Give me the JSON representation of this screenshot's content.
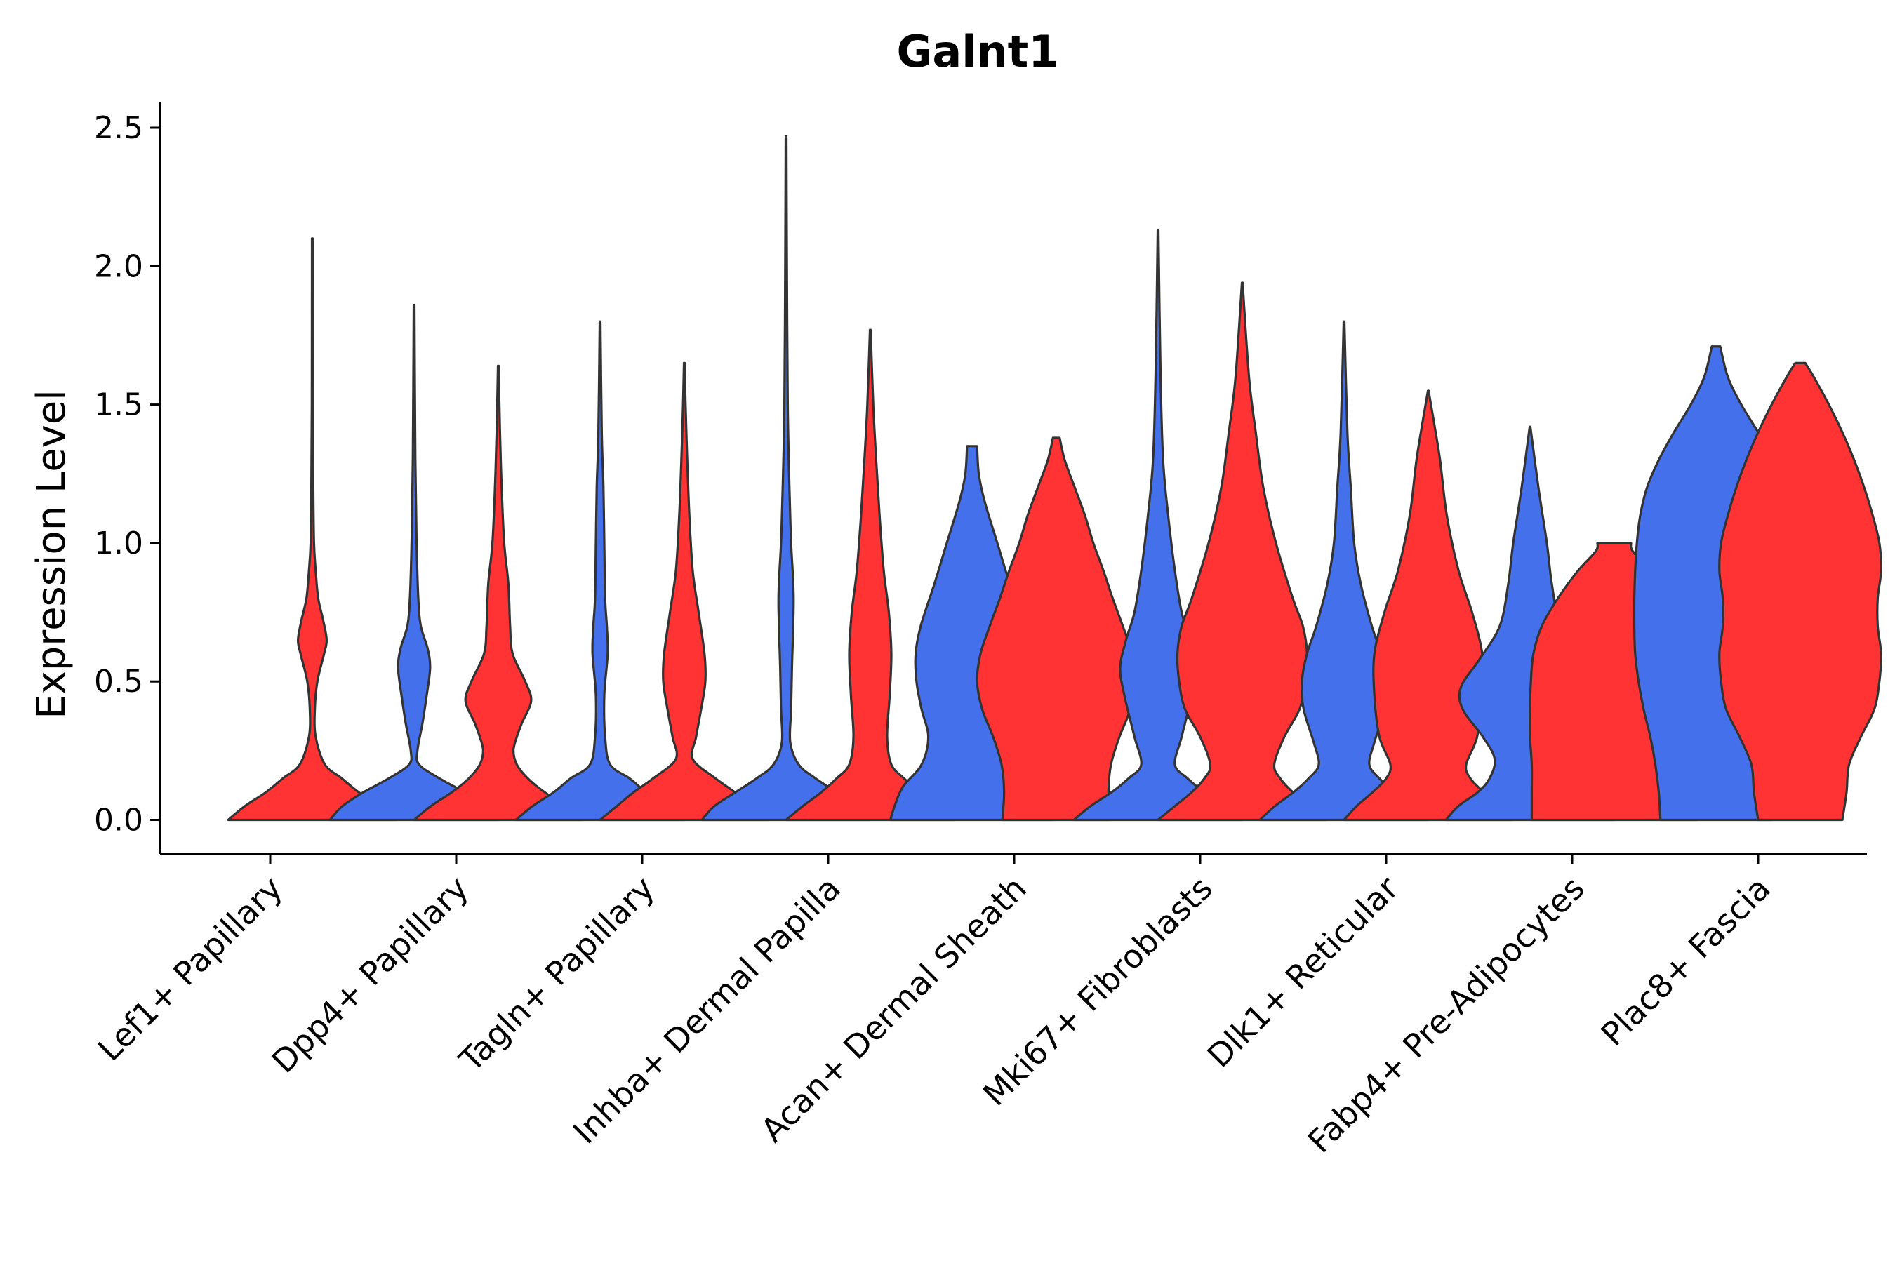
{
  "chart_data": {
    "type": "violin",
    "title": "Galnt1",
    "xlabel": "",
    "ylabel": "Expression Level",
    "ylim": [
      -0.12,
      2.6
    ],
    "yticks": [
      0.0,
      0.5,
      1.0,
      1.5,
      2.0,
      2.5
    ],
    "ytick_labels": [
      "0.0",
      "0.5",
      "1.0",
      "1.5",
      "2.0",
      "2.5"
    ],
    "grid": false,
    "legend": "none",
    "series_colors": [
      "#4470EB",
      "#FF3333"
    ],
    "categories": [
      "Lef1+ Papillary",
      "Dpp4+ Papillary",
      "Tagln+ Papillary",
      "Inhba+ Dermal Papilla",
      "Acan+ Dermal Sheath",
      "Mki67+ Fibroblasts",
      "Dlk1+ Reticular",
      "Fabp4+ Pre-Adipocytes",
      "Plac8+ Fascia"
    ],
    "violins": [
      {
        "category": 0,
        "group": 1,
        "max": 2.1,
        "profile": [
          [
            0,
            1.0
          ],
          [
            0.05,
            0.8
          ],
          [
            0.1,
            0.55
          ],
          [
            0.15,
            0.35
          ],
          [
            0.2,
            0.15
          ],
          [
            0.3,
            0.04
          ],
          [
            0.4,
            0.03
          ],
          [
            0.5,
            0.06
          ],
          [
            0.6,
            0.14
          ],
          [
            0.65,
            0.17
          ],
          [
            0.72,
            0.13
          ],
          [
            0.8,
            0.07
          ],
          [
            0.9,
            0.04
          ],
          [
            1.0,
            0.02
          ],
          [
            1.2,
            0.012
          ],
          [
            1.5,
            0.006
          ],
          [
            2.1,
            0.004
          ]
        ]
      },
      {
        "category": 1,
        "group": 0,
        "max": 1.86,
        "profile": [
          [
            0,
            1.0
          ],
          [
            0.05,
            0.85
          ],
          [
            0.1,
            0.6
          ],
          [
            0.15,
            0.3
          ],
          [
            0.2,
            0.06
          ],
          [
            0.25,
            0.04
          ],
          [
            0.35,
            0.1
          ],
          [
            0.45,
            0.15
          ],
          [
            0.55,
            0.19
          ],
          [
            0.62,
            0.16
          ],
          [
            0.7,
            0.08
          ],
          [
            0.8,
            0.05
          ],
          [
            1.0,
            0.03
          ],
          [
            1.3,
            0.015
          ],
          [
            1.86,
            0.004
          ]
        ]
      },
      {
        "category": 1,
        "group": 1,
        "max": 1.64,
        "profile": [
          [
            0,
            1.0
          ],
          [
            0.05,
            0.8
          ],
          [
            0.1,
            0.55
          ],
          [
            0.15,
            0.35
          ],
          [
            0.2,
            0.22
          ],
          [
            0.25,
            0.18
          ],
          [
            0.3,
            0.22
          ],
          [
            0.35,
            0.28
          ],
          [
            0.43,
            0.39
          ],
          [
            0.5,
            0.32
          ],
          [
            0.6,
            0.17
          ],
          [
            0.7,
            0.14
          ],
          [
            0.85,
            0.12
          ],
          [
            1.0,
            0.07
          ],
          [
            1.2,
            0.04
          ],
          [
            1.4,
            0.02
          ],
          [
            1.64,
            0.004
          ]
        ]
      },
      {
        "category": 2,
        "group": 0,
        "max": 1.8,
        "profile": [
          [
            0,
            1.0
          ],
          [
            0.05,
            0.8
          ],
          [
            0.1,
            0.55
          ],
          [
            0.15,
            0.35
          ],
          [
            0.2,
            0.12
          ],
          [
            0.3,
            0.06
          ],
          [
            0.45,
            0.05
          ],
          [
            0.6,
            0.09
          ],
          [
            0.7,
            0.08
          ],
          [
            0.8,
            0.06
          ],
          [
            1.0,
            0.05
          ],
          [
            1.2,
            0.04
          ],
          [
            1.4,
            0.02
          ],
          [
            1.8,
            0.004
          ]
        ]
      },
      {
        "category": 2,
        "group": 1,
        "max": 1.65,
        "profile": [
          [
            0,
            1.0
          ],
          [
            0.05,
            0.8
          ],
          [
            0.1,
            0.6
          ],
          [
            0.15,
            0.37
          ],
          [
            0.22,
            0.1
          ],
          [
            0.3,
            0.14
          ],
          [
            0.4,
            0.2
          ],
          [
            0.5,
            0.25
          ],
          [
            0.6,
            0.24
          ],
          [
            0.75,
            0.17
          ],
          [
            0.9,
            0.1
          ],
          [
            1.1,
            0.06
          ],
          [
            1.3,
            0.035
          ],
          [
            1.5,
            0.015
          ],
          [
            1.65,
            0.004
          ]
        ]
      },
      {
        "category": 3,
        "group": 0,
        "max": 2.47,
        "profile": [
          [
            0,
            1.0
          ],
          [
            0.05,
            0.85
          ],
          [
            0.1,
            0.6
          ],
          [
            0.15,
            0.35
          ],
          [
            0.2,
            0.15
          ],
          [
            0.28,
            0.05
          ],
          [
            0.4,
            0.06
          ],
          [
            0.55,
            0.07
          ],
          [
            0.8,
            0.09
          ],
          [
            1.0,
            0.06
          ],
          [
            1.2,
            0.04
          ],
          [
            1.5,
            0.02
          ],
          [
            2.0,
            0.01
          ],
          [
            2.47,
            0.004
          ]
        ]
      },
      {
        "category": 3,
        "group": 1,
        "max": 1.77,
        "profile": [
          [
            0,
            1.0
          ],
          [
            0.05,
            0.8
          ],
          [
            0.1,
            0.58
          ],
          [
            0.15,
            0.4
          ],
          [
            0.2,
            0.25
          ],
          [
            0.3,
            0.2
          ],
          [
            0.45,
            0.23
          ],
          [
            0.6,
            0.25
          ],
          [
            0.75,
            0.22
          ],
          [
            0.9,
            0.16
          ],
          [
            1.1,
            0.11
          ],
          [
            1.3,
            0.07
          ],
          [
            1.5,
            0.035
          ],
          [
            1.77,
            0.004
          ]
        ]
      },
      {
        "category": 4,
        "group": 0,
        "max": 1.35,
        "profile": [
          [
            0,
            0.97
          ],
          [
            0.05,
            0.92
          ],
          [
            0.12,
            0.82
          ],
          [
            0.2,
            0.6
          ],
          [
            0.3,
            0.52
          ],
          [
            0.4,
            0.6
          ],
          [
            0.5,
            0.66
          ],
          [
            0.6,
            0.67
          ],
          [
            0.7,
            0.61
          ],
          [
            0.85,
            0.45
          ],
          [
            1.0,
            0.3
          ],
          [
            1.15,
            0.15
          ],
          [
            1.25,
            0.08
          ],
          [
            1.35,
            0.06
          ]
        ]
      },
      {
        "category": 4,
        "group": 1,
        "max": 1.38,
        "profile": [
          [
            0,
            0.64
          ],
          [
            0.1,
            0.62
          ],
          [
            0.2,
            0.65
          ],
          [
            0.3,
            0.75
          ],
          [
            0.4,
            0.88
          ],
          [
            0.5,
            0.94
          ],
          [
            0.6,
            0.9
          ],
          [
            0.7,
            0.79
          ],
          [
            0.8,
            0.67
          ],
          [
            0.9,
            0.56
          ],
          [
            1.0,
            0.44
          ],
          [
            1.1,
            0.34
          ],
          [
            1.2,
            0.22
          ],
          [
            1.3,
            0.1
          ],
          [
            1.38,
            0.04
          ]
        ]
      },
      {
        "category": 5,
        "group": 0,
        "max": 2.13,
        "profile": [
          [
            0,
            1.0
          ],
          [
            0.05,
            0.8
          ],
          [
            0.1,
            0.55
          ],
          [
            0.15,
            0.35
          ],
          [
            0.2,
            0.2
          ],
          [
            0.3,
            0.28
          ],
          [
            0.45,
            0.4
          ],
          [
            0.55,
            0.45
          ],
          [
            0.65,
            0.38
          ],
          [
            0.75,
            0.28
          ],
          [
            0.9,
            0.2
          ],
          [
            1.1,
            0.12
          ],
          [
            1.3,
            0.06
          ],
          [
            1.6,
            0.03
          ],
          [
            2.13,
            0.004
          ]
        ]
      },
      {
        "category": 5,
        "group": 1,
        "max": 1.94,
        "profile": [
          [
            0,
            1.0
          ],
          [
            0.05,
            0.8
          ],
          [
            0.1,
            0.6
          ],
          [
            0.15,
            0.45
          ],
          [
            0.2,
            0.38
          ],
          [
            0.3,
            0.5
          ],
          [
            0.4,
            0.68
          ],
          [
            0.5,
            0.75
          ],
          [
            0.6,
            0.77
          ],
          [
            0.7,
            0.72
          ],
          [
            0.8,
            0.6
          ],
          [
            1.0,
            0.4
          ],
          [
            1.2,
            0.25
          ],
          [
            1.4,
            0.16
          ],
          [
            1.6,
            0.08
          ],
          [
            1.94,
            0.004
          ]
        ]
      },
      {
        "category": 6,
        "group": 0,
        "max": 1.8,
        "profile": [
          [
            0,
            1.0
          ],
          [
            0.05,
            0.82
          ],
          [
            0.1,
            0.6
          ],
          [
            0.15,
            0.42
          ],
          [
            0.2,
            0.3
          ],
          [
            0.28,
            0.36
          ],
          [
            0.4,
            0.48
          ],
          [
            0.5,
            0.5
          ],
          [
            0.6,
            0.44
          ],
          [
            0.7,
            0.33
          ],
          [
            0.85,
            0.2
          ],
          [
            1.0,
            0.12
          ],
          [
            1.2,
            0.08
          ],
          [
            1.4,
            0.04
          ],
          [
            1.8,
            0.004
          ]
        ]
      },
      {
        "category": 6,
        "group": 1,
        "max": 1.55,
        "profile": [
          [
            0,
            1.0
          ],
          [
            0.05,
            0.85
          ],
          [
            0.1,
            0.66
          ],
          [
            0.15,
            0.5
          ],
          [
            0.2,
            0.45
          ],
          [
            0.3,
            0.58
          ],
          [
            0.45,
            0.64
          ],
          [
            0.6,
            0.64
          ],
          [
            0.75,
            0.52
          ],
          [
            0.9,
            0.36
          ],
          [
            1.1,
            0.22
          ],
          [
            1.3,
            0.14
          ],
          [
            1.45,
            0.06
          ],
          [
            1.55,
            0.004
          ]
        ]
      },
      {
        "category": 7,
        "group": 0,
        "max": 1.42,
        "profile": [
          [
            0,
            1.0
          ],
          [
            0.05,
            0.85
          ],
          [
            0.1,
            0.62
          ],
          [
            0.15,
            0.48
          ],
          [
            0.22,
            0.42
          ],
          [
            0.3,
            0.56
          ],
          [
            0.4,
            0.8
          ],
          [
            0.48,
            0.82
          ],
          [
            0.58,
            0.6
          ],
          [
            0.7,
            0.36
          ],
          [
            0.85,
            0.26
          ],
          [
            1.0,
            0.2
          ],
          [
            1.2,
            0.1
          ],
          [
            1.42,
            0.004
          ]
        ]
      },
      {
        "category": 7,
        "group": 1,
        "max": 1.0,
        "profile": [
          [
            0,
            0.98
          ],
          [
            0.1,
            0.98
          ],
          [
            0.2,
            0.98
          ],
          [
            0.3,
            1.0
          ],
          [
            0.4,
            1.0
          ],
          [
            0.5,
            0.99
          ],
          [
            0.6,
            0.96
          ],
          [
            0.7,
            0.86
          ],
          [
            0.8,
            0.67
          ],
          [
            0.9,
            0.43
          ],
          [
            0.97,
            0.22
          ],
          [
            1.0,
            0.2
          ]
        ]
      },
      {
        "category": 8,
        "group": 0,
        "max": 1.71,
        "profile": [
          [
            0,
            0.66
          ],
          [
            0.1,
            0.68
          ],
          [
            0.2,
            0.72
          ],
          [
            0.3,
            0.78
          ],
          [
            0.4,
            0.86
          ],
          [
            0.5,
            0.92
          ],
          [
            0.6,
            0.96
          ],
          [
            0.7,
            0.97
          ],
          [
            0.8,
            0.97
          ],
          [
            0.9,
            0.96
          ],
          [
            1.0,
            0.94
          ],
          [
            1.1,
            0.9
          ],
          [
            1.2,
            0.82
          ],
          [
            1.3,
            0.68
          ],
          [
            1.4,
            0.5
          ],
          [
            1.5,
            0.3
          ],
          [
            1.6,
            0.14
          ],
          [
            1.71,
            0.05
          ]
        ]
      },
      {
        "category": 8,
        "group": 1,
        "max": 1.65,
        "profile": [
          [
            0,
            0.5
          ],
          [
            0.1,
            0.55
          ],
          [
            0.2,
            0.58
          ],
          [
            0.3,
            0.72
          ],
          [
            0.4,
            0.88
          ],
          [
            0.5,
            0.94
          ],
          [
            0.6,
            0.96
          ],
          [
            0.7,
            0.92
          ],
          [
            0.8,
            0.92
          ],
          [
            0.9,
            0.96
          ],
          [
            1.0,
            0.94
          ],
          [
            1.1,
            0.86
          ],
          [
            1.2,
            0.76
          ],
          [
            1.3,
            0.64
          ],
          [
            1.4,
            0.5
          ],
          [
            1.5,
            0.34
          ],
          [
            1.6,
            0.16
          ],
          [
            1.65,
            0.06
          ]
        ]
      }
    ]
  }
}
